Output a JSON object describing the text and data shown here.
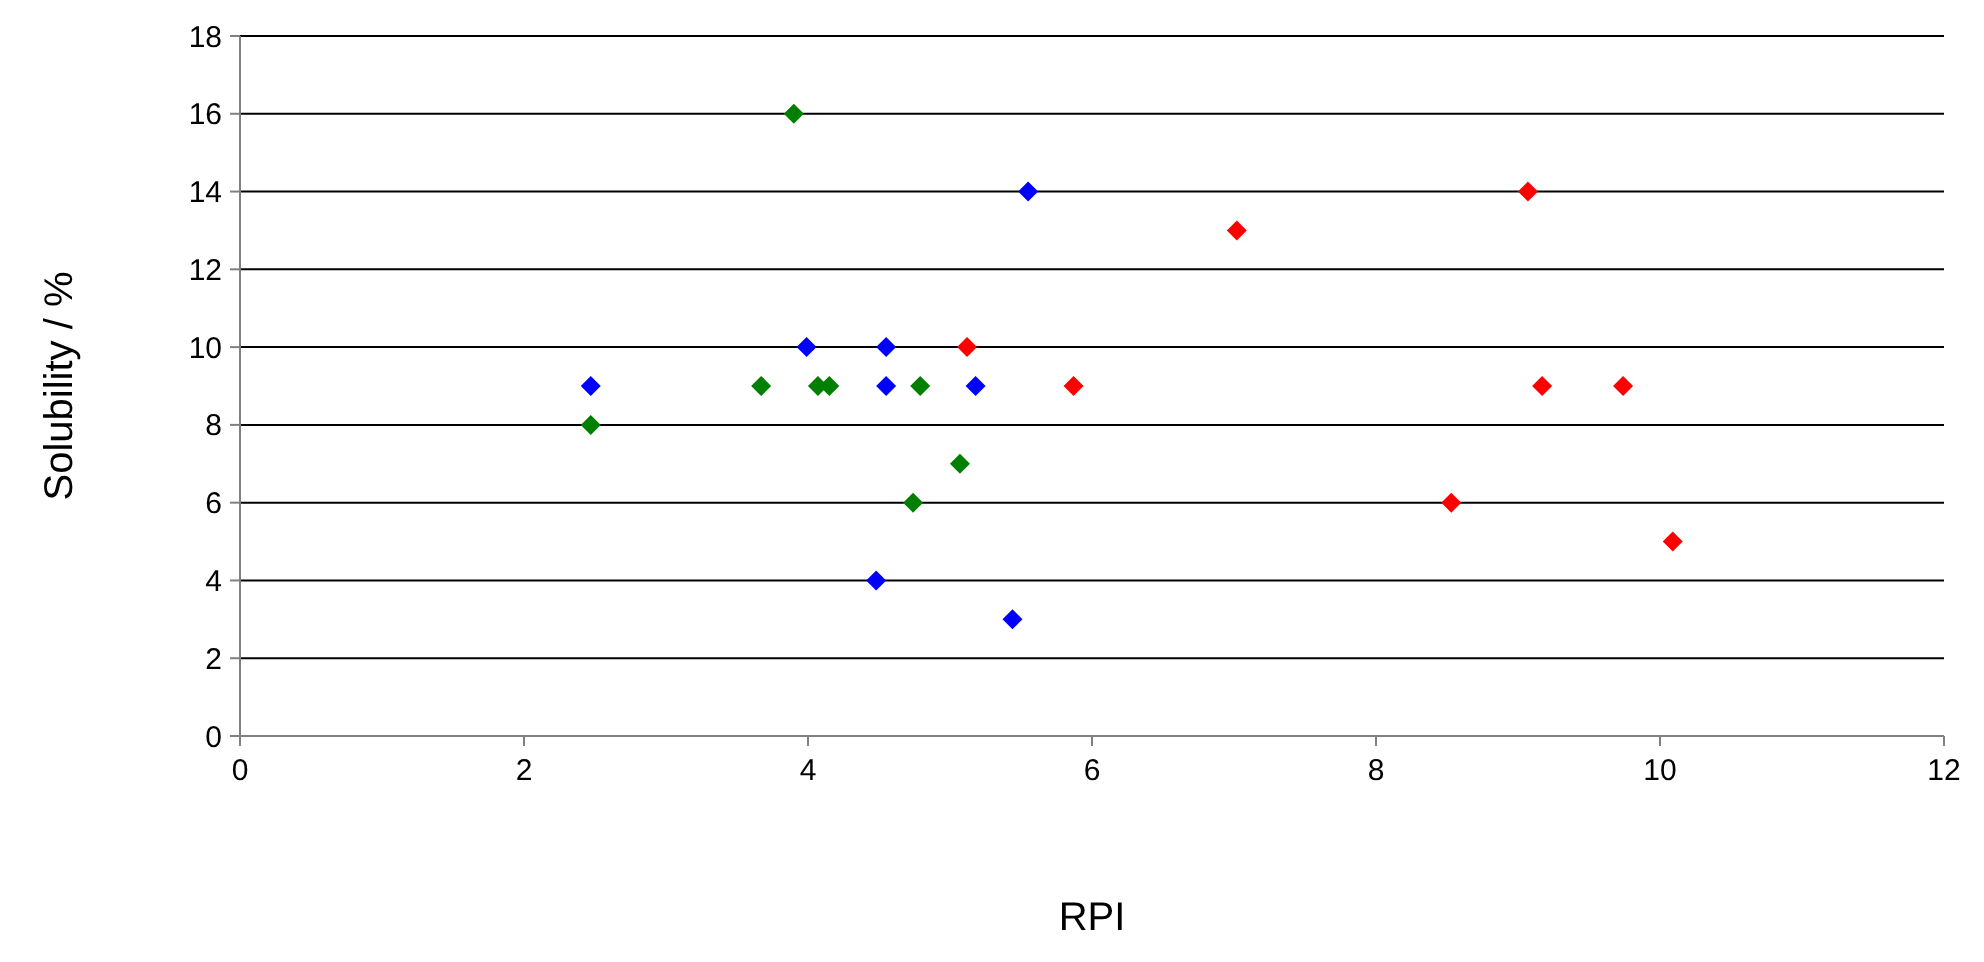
{
  "chart_data": {
    "type": "scatter",
    "xlabel": "RPI",
    "ylabel": "Solubility / %",
    "xlim": [
      0,
      12
    ],
    "ylim": [
      0,
      18
    ],
    "xticks": [
      0,
      2,
      4,
      6,
      8,
      10,
      12
    ],
    "yticks": [
      0,
      2,
      4,
      6,
      8,
      10,
      12,
      14,
      16,
      18
    ],
    "grid": "y",
    "marker": "diamond",
    "series": [
      {
        "color": "#008000",
        "x": [
          2.47,
          3.67,
          3.9,
          4.07,
          4.15,
          4.74,
          4.79,
          5.07
        ],
        "values": [
          8,
          9,
          16,
          9,
          9,
          6,
          9,
          7
        ]
      },
      {
        "color": "#0000ff",
        "x": [
          2.47,
          3.99,
          4.55,
          4.55,
          4.48,
          5.18,
          5.44,
          5.55
        ],
        "values": [
          9,
          10,
          10,
          9,
          4,
          9,
          3,
          14
        ]
      },
      {
        "color": "#ff0000",
        "x": [
          5.12,
          5.87,
          7.02,
          8.53,
          9.07,
          9.17,
          9.74,
          10.09
        ],
        "values": [
          10,
          9,
          13,
          6,
          14,
          9,
          9,
          5
        ]
      }
    ]
  }
}
